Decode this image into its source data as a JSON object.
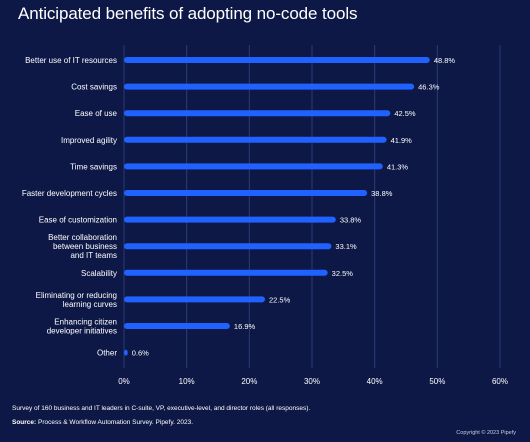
{
  "colors": {
    "background": "#0d1846",
    "bar": "#1f62ff",
    "grid": "#2b3a78",
    "text": "#ffffff"
  },
  "chart_data": {
    "type": "bar",
    "orientation": "horizontal",
    "title": "Anticipated benefits of adopting no-code tools",
    "categories": [
      [
        "Better use of IT resources"
      ],
      [
        "Cost savings"
      ],
      [
        "Ease of use"
      ],
      [
        "Improved agility"
      ],
      [
        "Time savings"
      ],
      [
        "Faster development cycles"
      ],
      [
        "Ease of customization"
      ],
      [
        "Better collaboration",
        "between business",
        "and IT teams"
      ],
      [
        "Scalability"
      ],
      [
        "Eliminating or reducing",
        "learning curves"
      ],
      [
        "Enhancing citizen",
        "developer initiatives"
      ],
      [
        "Other"
      ]
    ],
    "values": [
      48.8,
      46.3,
      42.5,
      41.9,
      41.3,
      38.8,
      33.8,
      33.1,
      32.5,
      22.5,
      16.9,
      0.6
    ],
    "value_labels": [
      "48.8%",
      "46.3%",
      "42.5%",
      "41.9%",
      "41.3%",
      "38.8%",
      "33.8%",
      "33.1%",
      "32.5%",
      "22.5%",
      "16.9%",
      "0.6%"
    ],
    "xlim": [
      0,
      60
    ],
    "xticks": [
      0,
      10,
      20,
      30,
      40,
      50,
      60
    ],
    "xtick_labels": [
      "0%",
      "10%",
      "20%",
      "30%",
      "40%",
      "50%",
      "60%"
    ],
    "grid": true,
    "legend": false
  },
  "footer": {
    "survey_note": "Survey of 160 business and IT leaders in C-suite, VP, executive-level, and director roles (all responses).",
    "source_label": "Source:",
    "source_text": " Process & Workflow Automation Survey. Pipefy. 2023.",
    "copyright": "Copyright © 2023 Pipefy"
  }
}
